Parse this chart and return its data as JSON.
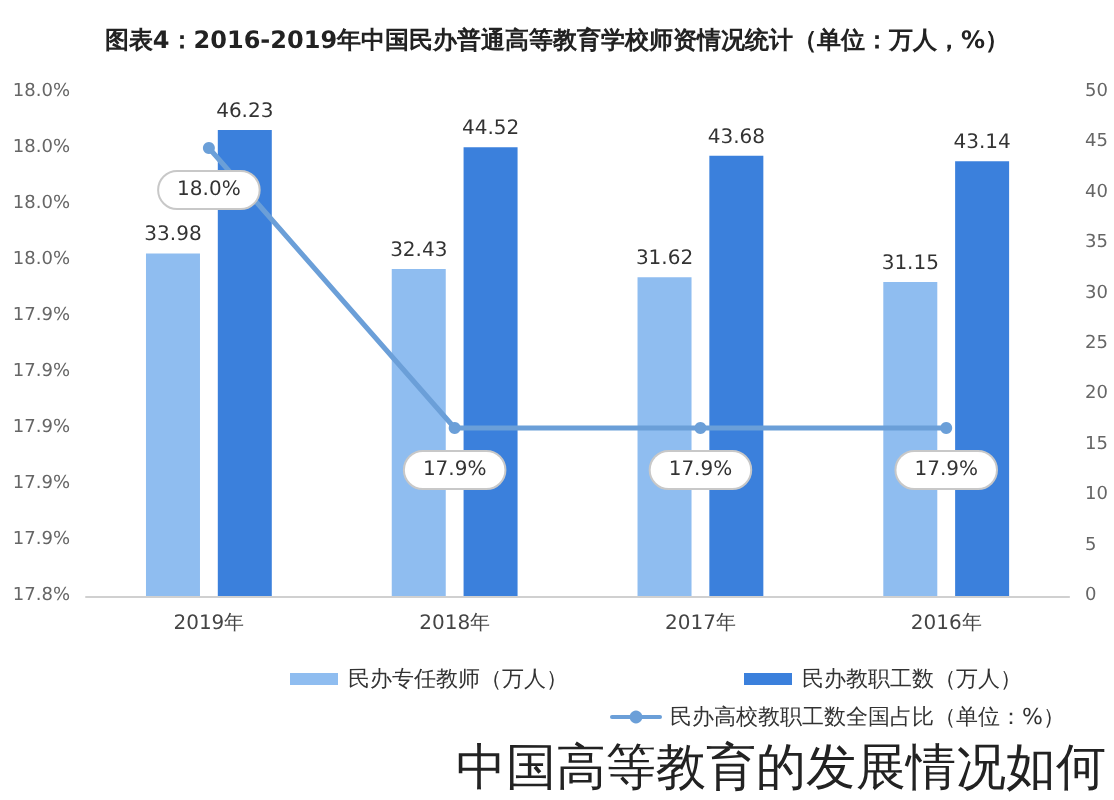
{
  "chart_data": {
    "type": "bar",
    "title": "图表4：2016-2019年中国民办普通高等教育学校师资情况统计（单位：万人，%）",
    "categories": [
      "2019年",
      "2018年",
      "2017年",
      "2016年"
    ],
    "series": [
      {
        "name": "民办专任教师（万人）",
        "axis": "y2",
        "color": "#8fbdf0",
        "values": [
          33.98,
          32.43,
          31.62,
          31.15
        ],
        "value_labels": [
          "33.98",
          "32.43",
          "31.62",
          "31.15"
        ]
      },
      {
        "name": "民办教职工数（万人）",
        "axis": "y2",
        "color": "#3b80dc",
        "values": [
          46.23,
          44.52,
          43.68,
          43.14
        ],
        "value_labels": [
          "46.23",
          "44.52",
          "43.68",
          "43.14"
        ]
      },
      {
        "name": "民办高校教职工数全国占比（单位：%）",
        "type": "line",
        "color": "#6b9fd8",
        "values": [
          18.0,
          17.9,
          17.9,
          17.9
        ],
        "value_labels": [
          "18.0%",
          "17.9%",
          "17.9%",
          "17.9%"
        ]
      }
    ],
    "ylim": [
      17.84,
      18.02
    ],
    "yticks": [
      {
        "value": 17.84,
        "label": "17.8%"
      },
      {
        "value": 17.86,
        "label": "17.9%"
      },
      {
        "value": 17.88,
        "label": "17.9%"
      },
      {
        "value": 17.9,
        "label": "17.9%"
      },
      {
        "value": 17.92,
        "label": "17.9%"
      },
      {
        "value": 17.94,
        "label": "17.9%"
      },
      {
        "value": 17.96,
        "label": "18.0%"
      },
      {
        "value": 17.98,
        "label": "18.0%"
      },
      {
        "value": 18.0,
        "label": "18.0%"
      },
      {
        "value": 18.02,
        "label": "18.0%"
      }
    ],
    "y2lim": [
      0,
      50
    ],
    "y2ticks": [
      0,
      5,
      10,
      15,
      20,
      25,
      30,
      35,
      40,
      45,
      50
    ],
    "grid": false,
    "legend": "bottom",
    "marker": "circle",
    "line_style": "solid",
    "annotations": [
      "中国高等教育的发展情况如何"
    ]
  }
}
